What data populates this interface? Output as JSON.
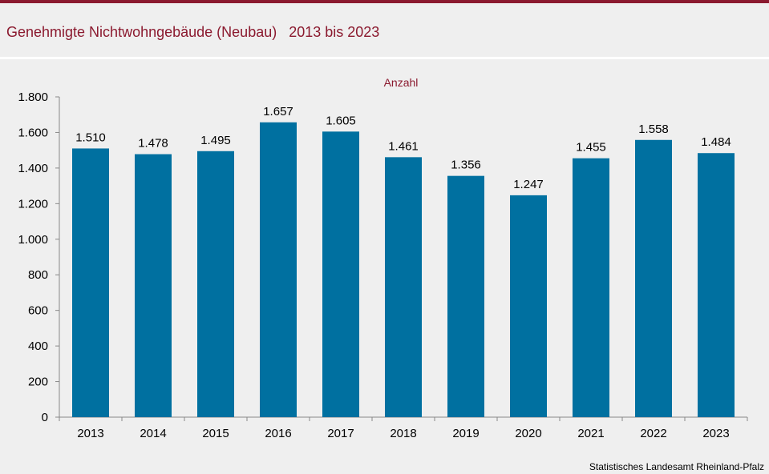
{
  "header": {
    "title": "Genehmigte Nichtwohngebäude (Neubau)   2013 bis 2023"
  },
  "footer": {
    "source": "Statistisches Landesamt  Rheinland-Pfalz"
  },
  "colors": {
    "accent": "#8b1a2f",
    "bar": "#0070a0",
    "background": "#efefef"
  },
  "chart_data": {
    "type": "bar",
    "title": "Genehmigte Nichtwohngebäude (Neubau)   2013 bis 2023",
    "ylabel": "Anzahl",
    "xlabel": "",
    "categories": [
      "2013",
      "2014",
      "2015",
      "2016",
      "2017",
      "2018",
      "2019",
      "2020",
      "2021",
      "2022",
      "2023"
    ],
    "values": [
      1510,
      1478,
      1495,
      1657,
      1605,
      1461,
      1356,
      1247,
      1455,
      1558,
      1484
    ],
    "value_labels": [
      "1.510",
      "1.478",
      "1.495",
      "1.657",
      "1.605",
      "1.461",
      "1.356",
      "1.247",
      "1.455",
      "1.558",
      "1.484"
    ],
    "ylim": [
      0,
      1800
    ],
    "yticks": [
      0,
      200,
      400,
      600,
      800,
      1000,
      1200,
      1400,
      1600,
      1800
    ],
    "ytick_labels": [
      "0",
      "200",
      "400",
      "600",
      "800",
      "1.000",
      "1.200",
      "1.400",
      "1.600",
      "1.800"
    ],
    "grid": false,
    "legend": "none"
  }
}
